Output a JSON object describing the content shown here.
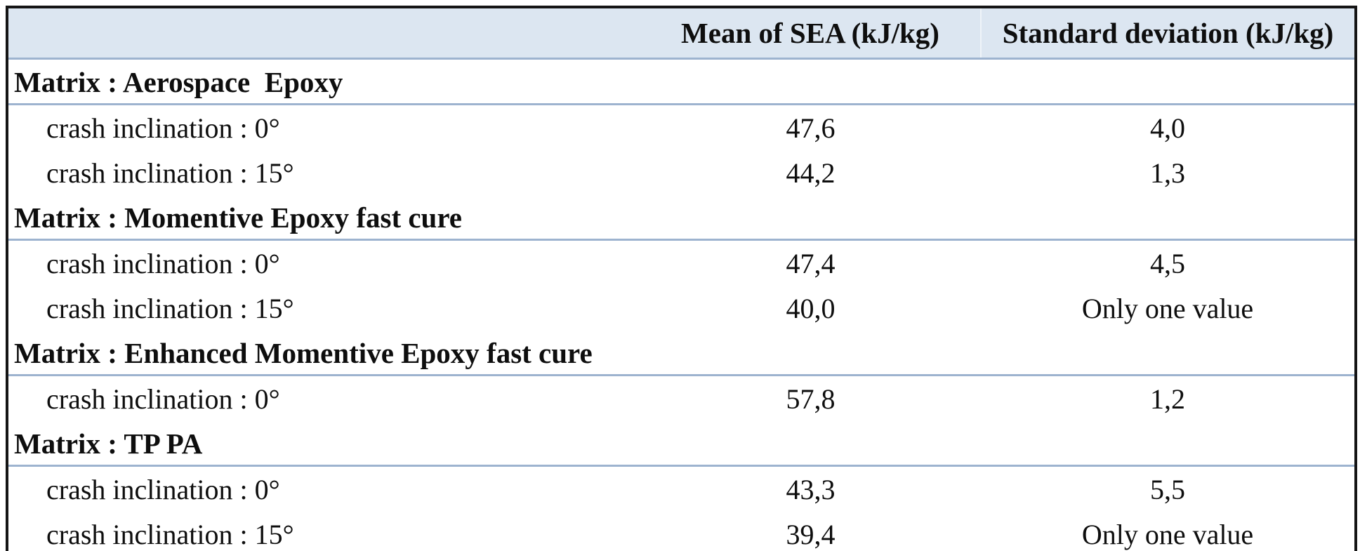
{
  "table": {
    "columns": {
      "label": "",
      "mean": "Mean of SEA (kJ/kg)",
      "std": "Standard deviation (kJ/kg)"
    },
    "sections": [
      {
        "label": "Matrix : Aerospace  Epoxy",
        "rows": [
          {
            "label": "crash inclination : 0°",
            "mean": "47,6",
            "std": "4,0"
          },
          {
            "label": "crash inclination : 15°",
            "mean": "44,2",
            "std": "1,3"
          }
        ]
      },
      {
        "label": "Matrix : Momentive Epoxy fast cure",
        "rows": [
          {
            "label": "crash inclination : 0°",
            "mean": "47,4",
            "std": "4,5"
          },
          {
            "label": "crash inclination : 15°",
            "mean": "40,0",
            "std": "Only one value"
          }
        ]
      },
      {
        "label": "Matrix : Enhanced Momentive Epoxy fast cure",
        "rows": [
          {
            "label": "crash inclination : 0°",
            "mean": "57,8",
            "std": "1,2"
          }
        ]
      },
      {
        "label": "Matrix : TP PA",
        "rows": [
          {
            "label": "crash inclination : 0°",
            "mean": "43,3",
            "std": "5,5"
          },
          {
            "label": "crash inclination : 15°",
            "mean": "39,4",
            "std": "Only one value"
          }
        ]
      }
    ],
    "colors": {
      "header_bg": "#dce6f1",
      "rule_blue": "#9db3cf",
      "outer_border": "#151515"
    }
  }
}
